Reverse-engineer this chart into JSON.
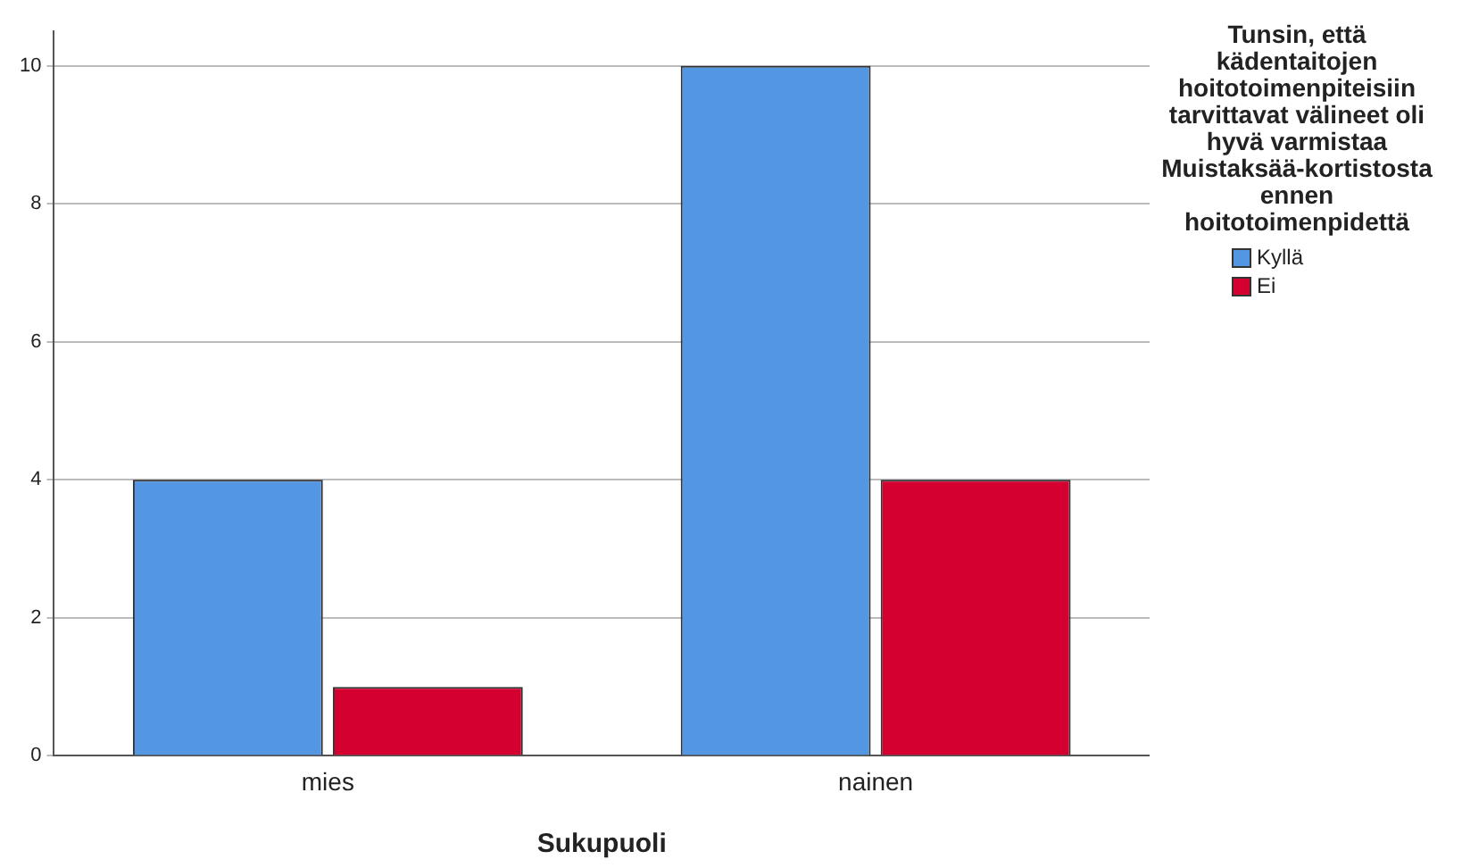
{
  "chart_data": {
    "type": "bar",
    "xlabel": "Sukupuoli",
    "legend_title": "Tunsin, että kädentaitojen hoitotoimenpiteisiin tarvittavat välineet oli hyvä varmistaa Muistaksää-kortistosta ennen hoitotoimenpidettä",
    "categories": [
      "mies",
      "nainen"
    ],
    "series": [
      {
        "name": "Kyllä",
        "color": "#5396e2",
        "values": [
          4,
          10
        ]
      },
      {
        "name": "Ei",
        "color": "#d4002f",
        "values": [
          1,
          4
        ]
      }
    ],
    "ylim": [
      0,
      10.5
    ],
    "yticks": [
      0,
      2,
      4,
      6,
      8,
      10
    ],
    "grid": "y",
    "legend": "right"
  }
}
